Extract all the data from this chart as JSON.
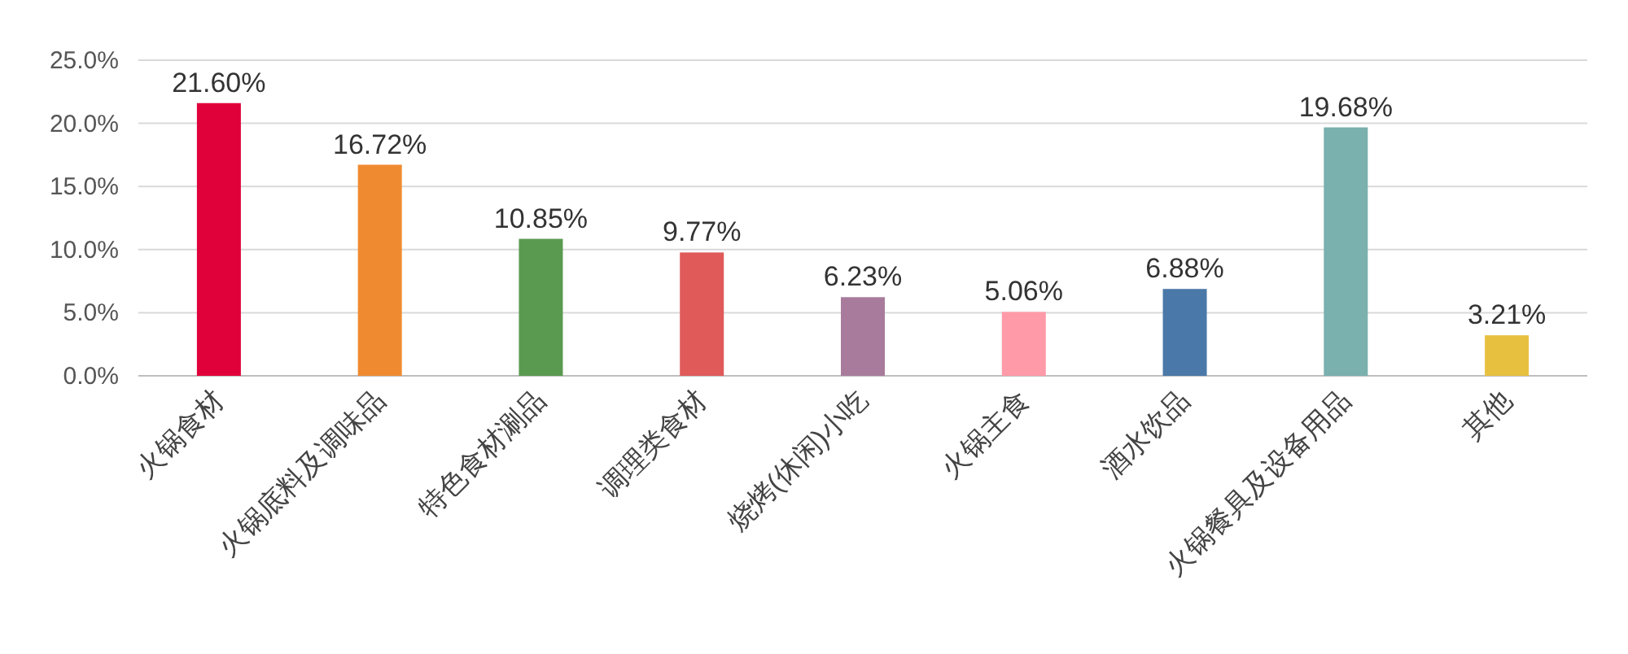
{
  "chart_data": {
    "type": "bar",
    "categories": [
      "火锅食材",
      "火锅底料及调味品",
      "特色食材涮品",
      "调理类食材",
      "烧烤(休闲)小吃",
      "火锅主食",
      "酒水饮品",
      "火锅餐具及设备用品",
      "其他"
    ],
    "values": [
      21.6,
      16.72,
      10.85,
      9.77,
      6.23,
      5.06,
      6.88,
      19.68,
      3.21
    ],
    "colors": [
      "#e0003a",
      "#f08a30",
      "#5a9a50",
      "#e05a5a",
      "#a87b9c",
      "#ff9aa8",
      "#4a78a8",
      "#7ab0ae",
      "#e8c040"
    ],
    "value_labels": [
      "21.60%",
      "16.72%",
      "10.85%",
      "9.77%",
      "6.23%",
      "5.06%",
      "6.88%",
      "19.68%",
      "3.21%"
    ],
    "ylim": [
      0,
      25
    ],
    "yticks": [
      {
        "value": 0,
        "label": "0.0%"
      },
      {
        "value": 5,
        "label": "5.0%"
      },
      {
        "value": 10,
        "label": "10.0%"
      },
      {
        "value": 15,
        "label": "15.0%"
      },
      {
        "value": 20,
        "label": "20.0%"
      },
      {
        "value": 25,
        "label": "25.0%"
      }
    ],
    "grid": "y"
  }
}
